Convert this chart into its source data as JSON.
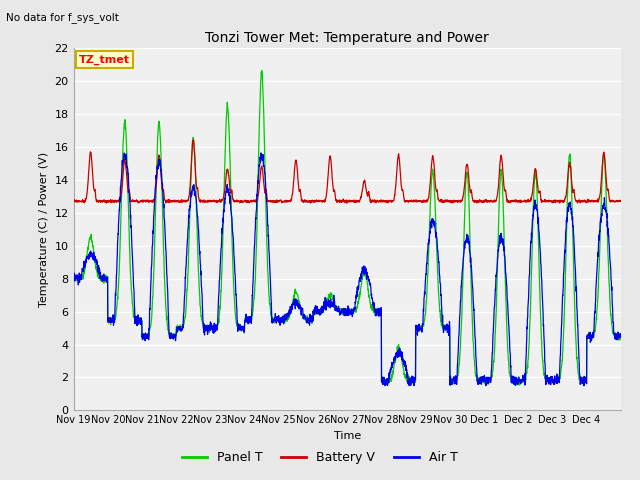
{
  "title": "Tonzi Tower Met: Temperature and Power",
  "top_left_text": "No data for f_sys_volt",
  "ylabel": "Temperature (C) / Power (V)",
  "xlabel": "Time",
  "ylim": [
    0,
    22
  ],
  "yticks": [
    0,
    2,
    4,
    6,
    8,
    10,
    12,
    14,
    16,
    18,
    20,
    22
  ],
  "xtick_labels": [
    "Nov 19",
    "Nov 20",
    "Nov 21",
    "Nov 22",
    "Nov 23",
    "Nov 24",
    "Nov 25",
    "Nov 26",
    "Nov 27",
    "Nov 28",
    "Nov 29",
    "Nov 30",
    "Dec 1",
    "Dec 2",
    "Dec 3",
    "Dec 4"
  ],
  "annotation_box": "TZ_tmet",
  "annotation_box_color": "#FFFFCC",
  "annotation_box_edge": "#CCAA00",
  "panel_t_color": "#00CC00",
  "battery_v_color": "#CC0000",
  "air_t_color": "#0000EE",
  "background_color": "#E8E8E8",
  "plot_bg_color": "#F0F0F0",
  "grid_color": "#FFFFFF",
  "legend_labels": [
    "Panel T",
    "Battery V",
    "Air T"
  ],
  "legend_colors": [
    "#00CC00",
    "#CC0000",
    "#0000EE"
  ]
}
